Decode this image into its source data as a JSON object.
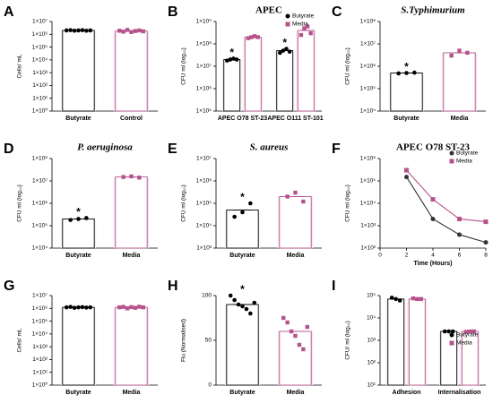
{
  "chart_data": [
    {
      "type": "bar",
      "panel": "A",
      "ylabel": "Cells/ mL",
      "log_scale": true,
      "ylim": [
        1,
        10000000.0
      ],
      "yticks": [
        {
          "value": 1,
          "label": "1×10⁰"
        },
        {
          "value": 10,
          "label": "1×10¹"
        },
        {
          "value": 100,
          "label": "1×10²"
        },
        {
          "value": 1000,
          "label": "1×10³"
        },
        {
          "value": 10000,
          "label": "1×10⁴"
        },
        {
          "value": 100000,
          "label": "1×10⁵"
        },
        {
          "value": 1000000,
          "label": "1×10⁶"
        },
        {
          "value": 10000000,
          "label": "1×10⁷"
        }
      ],
      "categories": [
        "Butyrate",
        "Control"
      ],
      "values": [
        2000000,
        1800000
      ],
      "colors": [
        "#000000",
        "#b5528c"
      ],
      "points": [
        [
          2000000,
          2100000,
          1900000,
          2000000,
          2100000,
          1900000,
          2000000
        ],
        [
          1900000,
          1600000,
          2200000,
          1500000,
          1800000,
          2000000,
          1700000
        ]
      ]
    },
    {
      "type": "bar",
      "panel": "B",
      "title": "APEC",
      "ylabel": "CFU ml (log₁₀)",
      "log_scale": true,
      "ylim": [
        100000,
        1000000000.0
      ],
      "yticks": [
        {
          "value": 100000,
          "label": "1×10⁵"
        },
        {
          "value": 1000000,
          "label": "1×10⁶"
        },
        {
          "value": 10000000,
          "label": "1×10⁷"
        },
        {
          "value": 100000000,
          "label": "1×10⁸"
        },
        {
          "value": 1000000000,
          "label": "1×10⁹"
        }
      ],
      "categories": [
        "APEC O78 ST-23",
        "APEC O111 ST-101"
      ],
      "legend": "upper right",
      "series": [
        {
          "name": "Butyrate",
          "color": "#000000",
          "values": [
            20000000,
            50000000
          ],
          "points": [
            [
              18000000,
              20000000,
              22000000,
              20000000
            ],
            [
              40000000,
              50000000,
              60000000,
              45000000
            ]
          ]
        },
        {
          "name": "Media",
          "color": "#b5528c",
          "values": [
            200000000,
            400000000
          ],
          "points": [
            [
              180000000,
              200000000,
              220000000,
              200000000
            ],
            [
              250000000,
              500000000,
              600000000,
              300000000
            ]
          ]
        }
      ],
      "annotations": [
        {
          "text": "*",
          "category": 0,
          "series": 0
        },
        {
          "text": "*",
          "category": 1,
          "series": 0
        }
      ]
    },
    {
      "type": "bar",
      "panel": "C",
      "title": "S.Typhimurium",
      "title_italic": true,
      "ylabel": "CFU ml (log₁₀)",
      "log_scale": true,
      "ylim": [
        10000,
        100000000.0
      ],
      "yticks": [
        {
          "value": 10000,
          "label": "1×10⁴"
        },
        {
          "value": 100000,
          "label": "1×10⁵"
        },
        {
          "value": 1000000,
          "label": "1×10⁶"
        },
        {
          "value": 10000000,
          "label": "1×10⁷"
        },
        {
          "value": 100000000,
          "label": "1×10⁸"
        }
      ],
      "categories": [
        "Butyrate",
        "Media"
      ],
      "values": [
        500000,
        4000000
      ],
      "colors": [
        "#000000",
        "#b5528c"
      ],
      "points": [
        [
          480000,
          500000,
          520000
        ],
        [
          3000000,
          5000000,
          4000000
        ]
      ],
      "annotations": [
        {
          "text": "*",
          "category": 0
        }
      ]
    },
    {
      "type": "bar",
      "panel": "D",
      "title": "P. aeruginosa",
      "title_italic": true,
      "ylabel": "CFU ml (log₁₀)",
      "log_scale": true,
      "ylim": [
        10000,
        100000000.0
      ],
      "yticks": [
        {
          "value": 10000,
          "label": "1×10⁴"
        },
        {
          "value": 100000,
          "label": "1×10⁵"
        },
        {
          "value": 1000000,
          "label": "1×10⁶"
        },
        {
          "value": 10000000,
          "label": "1×10⁷"
        },
        {
          "value": 100000000,
          "label": "1×10⁸"
        }
      ],
      "categories": [
        "Butyrate",
        "Media"
      ],
      "values": [
        200000,
        15000000
      ],
      "colors": [
        "#000000",
        "#b5528c"
      ],
      "points": [
        [
          180000,
          200000,
          220000
        ],
        [
          15000000,
          16000000,
          14000000
        ]
      ],
      "annotations": [
        {
          "text": "*",
          "category": 0
        }
      ]
    },
    {
      "type": "bar",
      "panel": "E",
      "title": "S. aureus",
      "title_italic": true,
      "ylabel": "CFU ml (log₁₀)",
      "log_scale": true,
      "ylim": [
        1000,
        10000000.0
      ],
      "yticks": [
        {
          "value": 1000,
          "label": "1×10³"
        },
        {
          "value": 10000,
          "label": "1×10⁴"
        },
        {
          "value": 100000,
          "label": "1×10⁵"
        },
        {
          "value": 1000000,
          "label": "1×10⁶"
        },
        {
          "value": 10000000,
          "label": "1×10⁷"
        }
      ],
      "categories": [
        "Butyrate",
        "Media"
      ],
      "values": [
        50000,
        200000
      ],
      "colors": [
        "#000000",
        "#b5528c"
      ],
      "points": [
        [
          25000,
          40000,
          100000
        ],
        [
          200000,
          300000,
          120000
        ]
      ],
      "annotations": [
        {
          "text": "*",
          "category": 0
        }
      ]
    },
    {
      "type": "line",
      "panel": "F",
      "title": "APEC O78 ST-23",
      "ylabel": "CFU ml (log₁₀)",
      "xlabel": "Time (Hours)",
      "log_scale": true,
      "x": [
        2,
        4,
        6,
        8
      ],
      "xlim": [
        0,
        8
      ],
      "xticks": [
        0,
        2,
        4,
        6,
        8
      ],
      "ylim": [
        100,
        1000000
      ],
      "yticks": [
        {
          "value": 100,
          "label": "1×10²"
        },
        {
          "value": 1000,
          "label": "1×10³"
        },
        {
          "value": 10000,
          "label": "1×10⁴"
        },
        {
          "value": 100000,
          "label": "1×10⁵"
        },
        {
          "value": 1000000,
          "label": "1×10⁶"
        }
      ],
      "legend": "upper right",
      "series": [
        {
          "name": "Butyrate",
          "color": "#333333",
          "marker": "circle",
          "values": [
            150000,
            2000,
            400,
            180
          ]
        },
        {
          "name": "Media",
          "color": "#b5528c",
          "marker": "square",
          "values": [
            300000,
            15000,
            2000,
            1500
          ]
        }
      ]
    },
    {
      "type": "bar",
      "panel": "G",
      "ylabel": "Cells/ mL",
      "log_scale": true,
      "ylim": [
        1,
        10000000.0
      ],
      "yticks": [
        {
          "value": 1,
          "label": "1×10⁰"
        },
        {
          "value": 10,
          "label": "1×10¹"
        },
        {
          "value": 100,
          "label": "1×10²"
        },
        {
          "value": 1000,
          "label": "1×10³"
        },
        {
          "value": 10000,
          "label": "1×10⁴"
        },
        {
          "value": 100000,
          "label": "1×10⁵"
        },
        {
          "value": 1000000,
          "label": "1×10⁶"
        },
        {
          "value": 10000000,
          "label": "1×10⁷"
        }
      ],
      "categories": [
        "Butyrate",
        "Media"
      ],
      "values": [
        1200000,
        1200000
      ],
      "colors": [
        "#000000",
        "#b5528c"
      ],
      "points": [
        [
          1200000,
          1300000,
          1100000,
          1200000,
          1250000,
          1150000,
          1200000
        ],
        [
          1200000,
          1300000,
          1000000,
          1250000,
          1100000,
          1350000,
          1200000
        ]
      ]
    },
    {
      "type": "bar",
      "panel": "H",
      "ylabel": "Flu (Normalised)",
      "log_scale": false,
      "ylim": [
        0,
        100
      ],
      "yticks": [
        0,
        50,
        100
      ],
      "categories": [
        "Butyrate",
        "Media"
      ],
      "values": [
        90,
        60
      ],
      "colors": [
        "#000000",
        "#b5528c"
      ],
      "points": [
        [
          100,
          95,
          90,
          88,
          85,
          80,
          92
        ],
        [
          75,
          70,
          60,
          55,
          45,
          40,
          65
        ]
      ],
      "annotations": [
        {
          "text": "*",
          "category": 0
        }
      ]
    },
    {
      "type": "bar",
      "panel": "I",
      "ylabel": "CFU/ ml (log₁₀)",
      "log_scale": true,
      "ylim": [
        10,
        100000
      ],
      "yticks": [
        {
          "value": 10,
          "label": "10¹"
        },
        {
          "value": 100,
          "label": "10²"
        },
        {
          "value": 1000,
          "label": "10³"
        },
        {
          "value": 10000,
          "label": "10⁴"
        },
        {
          "value": 100000,
          "label": "10⁵"
        }
      ],
      "categories": [
        "Adhesion",
        "Internalisation"
      ],
      "legend": "right",
      "series": [
        {
          "name": "Butyrate",
          "color": "#000000",
          "values": [
            70000,
            2500
          ],
          "points": [
            [
              80000,
              70000,
              60000
            ],
            [
              2500,
              2500,
              2500
            ]
          ]
        },
        {
          "name": "Media",
          "color": "#b5528c",
          "values": [
            70000,
            2500
          ],
          "points": [
            [
              75000,
              70000,
              70000
            ],
            [
              2400,
              2500,
              2500
            ]
          ]
        }
      ]
    }
  ]
}
